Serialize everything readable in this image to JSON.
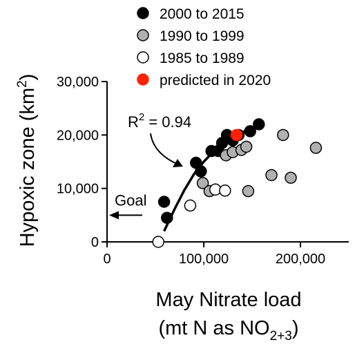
{
  "chart_data": {
    "type": "scatter",
    "title": "",
    "xlabel_line1": "May Nitrate load",
    "xlabel_line2_prefix": "(mt N as NO",
    "xlabel_line2_sub": "2+3",
    "xlabel_line2_suffix": ")",
    "ylabel_prefix": "Hypoxic zone (km",
    "ylabel_sup": "2",
    "ylabel_suffix": ")",
    "xlim": [
      0,
      250000
    ],
    "ylim": [
      0,
      30000
    ],
    "x_ticks": [
      {
        "value": 0,
        "label": "0"
      },
      {
        "value": 100000,
        "label": "100,000"
      },
      {
        "value": 200000,
        "label": "200,000"
      }
    ],
    "y_ticks": [
      {
        "value": 0,
        "label": "0"
      },
      {
        "value": 10000,
        "label": "10,000"
      },
      {
        "value": 20000,
        "label": "20,000"
      },
      {
        "value": 30000,
        "label": "30,000"
      }
    ],
    "grid": false,
    "legend_position": "top",
    "series": [
      {
        "name": "2000 to 2015",
        "color": "#000000",
        "stroke": "#000000",
        "points": [
          [
            59000,
            7500
          ],
          [
            62000,
            4500
          ],
          [
            92000,
            14800
          ],
          [
            97000,
            13200
          ],
          [
            108000,
            17000
          ],
          [
            115000,
            17000
          ],
          [
            119000,
            18500
          ],
          [
            124000,
            20000
          ],
          [
            130000,
            19000
          ],
          [
            136000,
            20000
          ],
          [
            148000,
            20700
          ],
          [
            157000,
            22000
          ]
        ]
      },
      {
        "name": "1990 to 1999",
        "color": "#b0b0b0",
        "stroke": "#000000",
        "points": [
          [
            99000,
            11000
          ],
          [
            106000,
            9500
          ],
          [
            123000,
            16200
          ],
          [
            130000,
            16800
          ],
          [
            139000,
            17200
          ],
          [
            144000,
            17800
          ],
          [
            146000,
            9500
          ],
          [
            170000,
            12500
          ],
          [
            182000,
            20000
          ],
          [
            190000,
            12000
          ],
          [
            216000,
            17600
          ]
        ]
      },
      {
        "name": "1985 to 1989",
        "color": "#ffffff",
        "stroke": "#000000",
        "points": [
          [
            53000,
            0
          ],
          [
            86000,
            6800
          ],
          [
            112000,
            9800
          ],
          [
            122000,
            9600
          ]
        ]
      },
      {
        "name": "predicted in 2020",
        "color": "#ff2200",
        "stroke": "#ff2200",
        "points": [
          [
            134000,
            20000
          ]
        ]
      }
    ],
    "fit_curve": [
      [
        59000,
        2000
      ],
      [
        70000,
        6200
      ],
      [
        80000,
        9700
      ],
      [
        90000,
        12700
      ],
      [
        100000,
        15000
      ],
      [
        110000,
        16900
      ],
      [
        120000,
        18300
      ],
      [
        130000,
        19500
      ],
      [
        140000,
        20500
      ],
      [
        150000,
        21300
      ],
      [
        158000,
        21900
      ]
    ],
    "annotations": {
      "r2_prefix": "R",
      "r2_sup": "2",
      "r2_suffix": " = 0.94",
      "goal_label": "Goal",
      "goal_value": 5000
    }
  }
}
